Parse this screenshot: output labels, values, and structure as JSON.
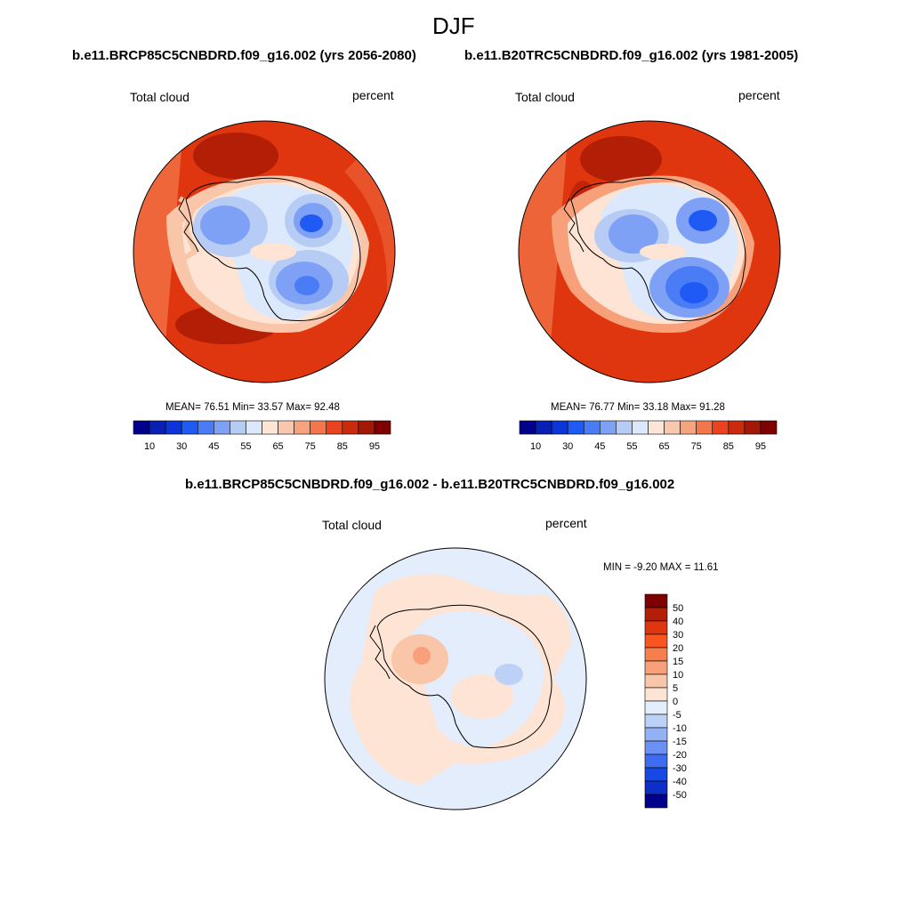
{
  "figure": {
    "season": "DJF",
    "diff_title": "b.e11.BRCP85C5CNBDRD.f09_g16.002 - b.e11.B20TRC5CNBDRD.f09_g16.002"
  },
  "panels": [
    {
      "case_title": "b.e11.BRCP85C5CNBDRD.f09_g16.002 (yrs 2056-2080)",
      "left_label": "Total cloud",
      "right_label": "percent",
      "stats": "MEAN=  76.51  Min=  33.57  Max=  92.48"
    },
    {
      "case_title": "b.e11.B20TRC5CNBDRD.f09_g16.002 (yrs 1981-2005)",
      "left_label": "Total cloud",
      "right_label": "percent",
      "stats": "MEAN=  76.77  Min=  33.18  Max=  91.28"
    },
    {
      "left_label": "Total cloud",
      "right_label": "percent",
      "stats": "MIN =  -9.20 MAX =  11.61"
    }
  ],
  "colorbar_abs": {
    "colors": [
      "#00008b",
      "#0a1fb4",
      "#0b35d9",
      "#1f5af5",
      "#4a7df5",
      "#7ea1f5",
      "#b6ccf5",
      "#dce8fb",
      "#fde6d7",
      "#f9c7ad",
      "#f7a37e",
      "#f4774b",
      "#e9431f",
      "#cc2a0c",
      "#a31905",
      "#7f0000"
    ],
    "tick_labels": [
      "10",
      "30",
      "45",
      "55",
      "65",
      "75",
      "85",
      "95"
    ]
  },
  "colorbar_diff": {
    "colors": [
      "#7f0000",
      "#b21e06",
      "#e0360f",
      "#f8561e",
      "#f77e4d",
      "#f7a07a",
      "#f9c6a9",
      "#fde4d5",
      "#e3edfb",
      "#bcd1f5",
      "#93b2f4",
      "#6a91f3",
      "#3d6cf0",
      "#1848e4",
      "#0b2fc7",
      "#00008b"
    ],
    "tick_labels": [
      "50",
      "40",
      "30",
      "20",
      "15",
      "10",
      "5",
      "0",
      "-5",
      "-10",
      "-15",
      "-20",
      "-30",
      "-40",
      "-50"
    ]
  }
}
